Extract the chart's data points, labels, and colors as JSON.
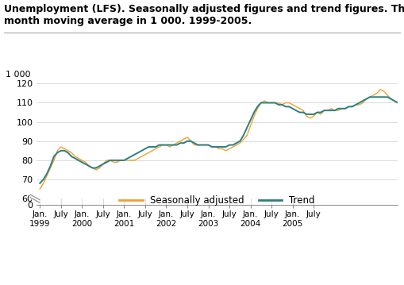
{
  "title_line1": "Unemployment (LFS). Seasonally adjusted figures and trend figures. Three-",
  "title_line2": "month moving average in 1 000. 1999-2005.",
  "ylabel_top": "1 000",
  "seasonally_adjusted": [
    65,
    68,
    72,
    76,
    80,
    85,
    87,
    86,
    85,
    84,
    82,
    81,
    80,
    79,
    77,
    76,
    75,
    76,
    78,
    80,
    80,
    79,
    79,
    80,
    80,
    80,
    80,
    80,
    81,
    82,
    83,
    84,
    85,
    86,
    87,
    88,
    88,
    87,
    88,
    89,
    90,
    91,
    92,
    90,
    88,
    88,
    88,
    88,
    88,
    87,
    87,
    86,
    86,
    85,
    86,
    87,
    88,
    89,
    91,
    93,
    98,
    103,
    107,
    110,
    111,
    110,
    110,
    110,
    110,
    109,
    110,
    110,
    109,
    108,
    107,
    106,
    103,
    102,
    103,
    105,
    104,
    106,
    106,
    107,
    106,
    106,
    107,
    107,
    108,
    108,
    109,
    109,
    110,
    112,
    113,
    114,
    115,
    117,
    116,
    114,
    112,
    111,
    110
  ],
  "trend": [
    68,
    70,
    73,
    77,
    82,
    84,
    85,
    85,
    84,
    82,
    81,
    80,
    79,
    78,
    77,
    76,
    76,
    77,
    78,
    79,
    80,
    80,
    80,
    80,
    80,
    81,
    82,
    83,
    84,
    85,
    86,
    87,
    87,
    87,
    88,
    88,
    88,
    88,
    88,
    88,
    89,
    89,
    90,
    90,
    89,
    88,
    88,
    88,
    88,
    87,
    87,
    87,
    87,
    87,
    88,
    88,
    89,
    90,
    93,
    97,
    101,
    105,
    108,
    110,
    110,
    110,
    110,
    110,
    109,
    109,
    108,
    108,
    107,
    106,
    105,
    105,
    104,
    104,
    104,
    105,
    105,
    106,
    106,
    106,
    106,
    107,
    107,
    107,
    108,
    108,
    109,
    110,
    111,
    112,
    113,
    113,
    113,
    113,
    113,
    113,
    112,
    111,
    110
  ],
  "sa_color": "#f0a030",
  "trend_color": "#2a8080",
  "n_points": 103,
  "x_tick_labels": [
    "Jan.\n1999",
    "July",
    "Jan.\n2000",
    "July",
    "Jan.\n2001",
    "July",
    "Jan.\n2002",
    "July",
    "Jan.\n2003",
    "July",
    "Jan.\n2004",
    "July",
    "Jan.\n2005",
    "July"
  ],
  "x_tick_positions": [
    0,
    6,
    12,
    18,
    24,
    30,
    36,
    42,
    48,
    54,
    60,
    66,
    72,
    78
  ],
  "background_color": "#ffffff",
  "grid_color": "#cccccc",
  "legend_sa_label": "Seasonally adjusted",
  "legend_trend_label": "Trend",
  "title_fontsize": 9.0,
  "tick_fontsize": 8.0,
  "legend_fontsize": 8.5
}
